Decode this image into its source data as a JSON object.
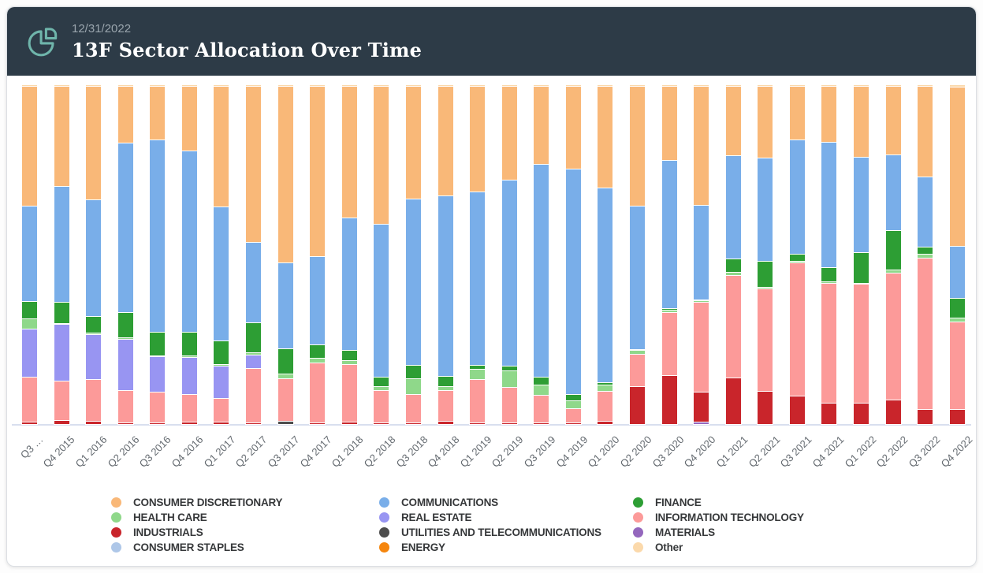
{
  "header": {
    "date": "12/31/2022",
    "title": "13F Sector Allocation Over Time",
    "bg_color": "#2d3b47",
    "icon": "pie-chart-icon",
    "icon_color": "#6fb5ab"
  },
  "chart_data": {
    "type": "bar",
    "stacked": true,
    "stacking": "percent",
    "title": "13F Sector Allocation Over Time",
    "xlabel": "",
    "ylabel": "",
    "ylim": [
      0,
      100
    ],
    "grid": false,
    "legend_position": "bottom",
    "axis_line_color": "#d9dfef",
    "categories": [
      "Q3 …",
      "Q4 2015",
      "Q1 2016",
      "Q2 2016",
      "Q3 2016",
      "Q4 2016",
      "Q1 2017",
      "Q2 2017",
      "Q3 2017",
      "Q4 2017",
      "Q1 2018",
      "Q2 2018",
      "Q3 2018",
      "Q4 2018",
      "Q1 2019",
      "Q2 2019",
      "Q3 2019",
      "Q4 2019",
      "Q1 2020",
      "Q2 2020",
      "Q3 2020",
      "Q4 2020",
      "Q1 2021",
      "Q2 2021",
      "Q3 2021",
      "Q4 2021",
      "Q1 2022",
      "Q2 2022",
      "Q3 2022",
      "Q4 2022"
    ],
    "series": [
      {
        "name": "MATERIALS",
        "color": "#9467bd",
        "values": [
          0,
          0,
          0,
          0,
          0,
          0,
          0,
          0,
          0,
          0,
          0,
          0,
          0,
          0,
          0,
          0,
          0,
          0,
          0,
          0,
          0,
          0.5,
          0,
          0,
          0,
          0,
          0,
          0,
          0,
          0
        ]
      },
      {
        "name": "ENERGY",
        "color": "#f5860e",
        "values": [
          0,
          0,
          0,
          0,
          0,
          0,
          0,
          0,
          0,
          0,
          0,
          0,
          0,
          0,
          0,
          0,
          0,
          0,
          0,
          0,
          0,
          0,
          0,
          0,
          0,
          0,
          0,
          0,
          0,
          0
        ]
      },
      {
        "name": "CONSUMER STAPLES",
        "color": "#aec7e8",
        "values": [
          0,
          0,
          0,
          0,
          0,
          0,
          0,
          0,
          0,
          0,
          0,
          0,
          0,
          0,
          0,
          0,
          0,
          0,
          0,
          0,
          0,
          0,
          0,
          0,
          0,
          0,
          0,
          0,
          0,
          0
        ]
      },
      {
        "name": "UTILITIES AND TELECOMMUNICATIONS",
        "color": "#4d4d4d",
        "values": [
          0,
          0,
          0,
          0,
          0,
          0,
          0,
          0,
          0.7,
          0,
          0,
          0,
          0,
          0,
          0,
          0,
          0,
          0,
          0,
          0,
          0,
          0,
          0,
          0,
          0,
          0,
          0,
          0,
          0,
          0
        ]
      },
      {
        "name": "INDUSTRIALS",
        "color": "#c9252b",
        "values": [
          0.5,
          0.9,
          0.7,
          0.3,
          0.3,
          0.5,
          0.4,
          0.3,
          0,
          0.2,
          0.5,
          0.2,
          0.2,
          0.7,
          0.2,
          0.3,
          0.2,
          0.2,
          0.7,
          11.0,
          14.1,
          8.9,
          13.6,
          9.6,
          8.2,
          6.1,
          6.1,
          7.0,
          4.2,
          4.2
        ]
      },
      {
        "name": "INFORMATION TECHNOLOGY",
        "color": "#fc9a99",
        "values": [
          13.3,
          11.7,
          12.4,
          9.4,
          8.9,
          8.2,
          7.0,
          15.9,
          12.6,
          17.6,
          16.9,
          9.6,
          8.4,
          9.1,
          12.9,
          10.5,
          8.2,
          4.2,
          8.9,
          9.4,
          18.7,
          26.5,
          30.2,
          30.2,
          39.3,
          35.4,
          35.1,
          37.5,
          44.7,
          25.8
        ]
      },
      {
        "name": "REAL ESTATE",
        "color": "#9895f2",
        "values": [
          14.1,
          16.6,
          13.3,
          15.2,
          10.5,
          10.8,
          9.6,
          4.0,
          0,
          0,
          0,
          0,
          0,
          0,
          0,
          0,
          0,
          0,
          0,
          0,
          0,
          0,
          0,
          0,
          0,
          0,
          0,
          0,
          0,
          0
        ]
      },
      {
        "name": "HEALTH CARE",
        "color": "#8fd88a",
        "values": [
          3.0,
          0.4,
          0.4,
          0.4,
          0.4,
          0.4,
          0.4,
          0.8,
          1.4,
          1.4,
          1.2,
          1.2,
          4.7,
          1.2,
          3.0,
          4.7,
          3.0,
          2.3,
          1.9,
          1.2,
          0.8,
          0.3,
          0.8,
          0.4,
          0.3,
          0.3,
          0.3,
          0.8,
          1.2,
          1.2
        ]
      },
      {
        "name": "FINANCE",
        "color": "#2d9e34",
        "values": [
          5.2,
          6.3,
          4.9,
          7.5,
          7.0,
          7.0,
          7.0,
          8.7,
          7.5,
          4.0,
          3.0,
          2.8,
          4.0,
          3.0,
          1.2,
          1.4,
          2.3,
          1.9,
          0.7,
          0.3,
          0.3,
          0.3,
          4.0,
          7.7,
          2.3,
          4.2,
          8.9,
          11.7,
          1.9,
          5.9
        ]
      },
      {
        "name": "COMMUNICATIONS",
        "color": "#79aee9",
        "values": [
          28.1,
          34.0,
          34.4,
          49.9,
          56.7,
          53.6,
          39.6,
          23.9,
          25.3,
          26.2,
          39.1,
          45.0,
          48.9,
          53.2,
          51.1,
          55.0,
          62.8,
          66.5,
          57.4,
          42.2,
          43.8,
          27.9,
          30.4,
          30.4,
          33.7,
          37.0,
          28.3,
          22.2,
          20.8,
          15.2
        ]
      },
      {
        "name": "CONSUMER DISCRETIONARY",
        "color": "#f9b878",
        "values": [
          35.3,
          29.6,
          33.4,
          16.8,
          15.7,
          19.0,
          35.5,
          45.9,
          52.0,
          50.1,
          38.8,
          40.7,
          33.3,
          32.3,
          31.1,
          27.6,
          23.0,
          24.4,
          29.9,
          35.4,
          21.8,
          35.1,
          20.5,
          21.2,
          15.7,
          16.5,
          20.8,
          20.3,
          26.7,
          46.9
        ]
      },
      {
        "name": "Other",
        "color": "#fbd9ab",
        "values": [
          0.5,
          0.5,
          0.5,
          0.5,
          0.5,
          0.5,
          0.5,
          0.5,
          0.5,
          0.5,
          0.5,
          0.5,
          0.5,
          0.5,
          0.5,
          0.5,
          0.5,
          0.5,
          0.5,
          0.5,
          0.5,
          0.5,
          0.5,
          0.5,
          0.5,
          0.5,
          0.5,
          0.5,
          0.5,
          0.8
        ]
      }
    ],
    "legend_columns": [
      [
        "CONSUMER DISCRETIONARY",
        "HEALTH CARE",
        "INDUSTRIALS",
        "CONSUMER STAPLES"
      ],
      [
        "COMMUNICATIONS",
        "REAL ESTATE",
        "UTILITIES AND TELECOMMUNICATIONS",
        "ENERGY"
      ],
      [
        "FINANCE",
        "INFORMATION TECHNOLOGY",
        "MATERIALS",
        "Other"
      ]
    ]
  }
}
